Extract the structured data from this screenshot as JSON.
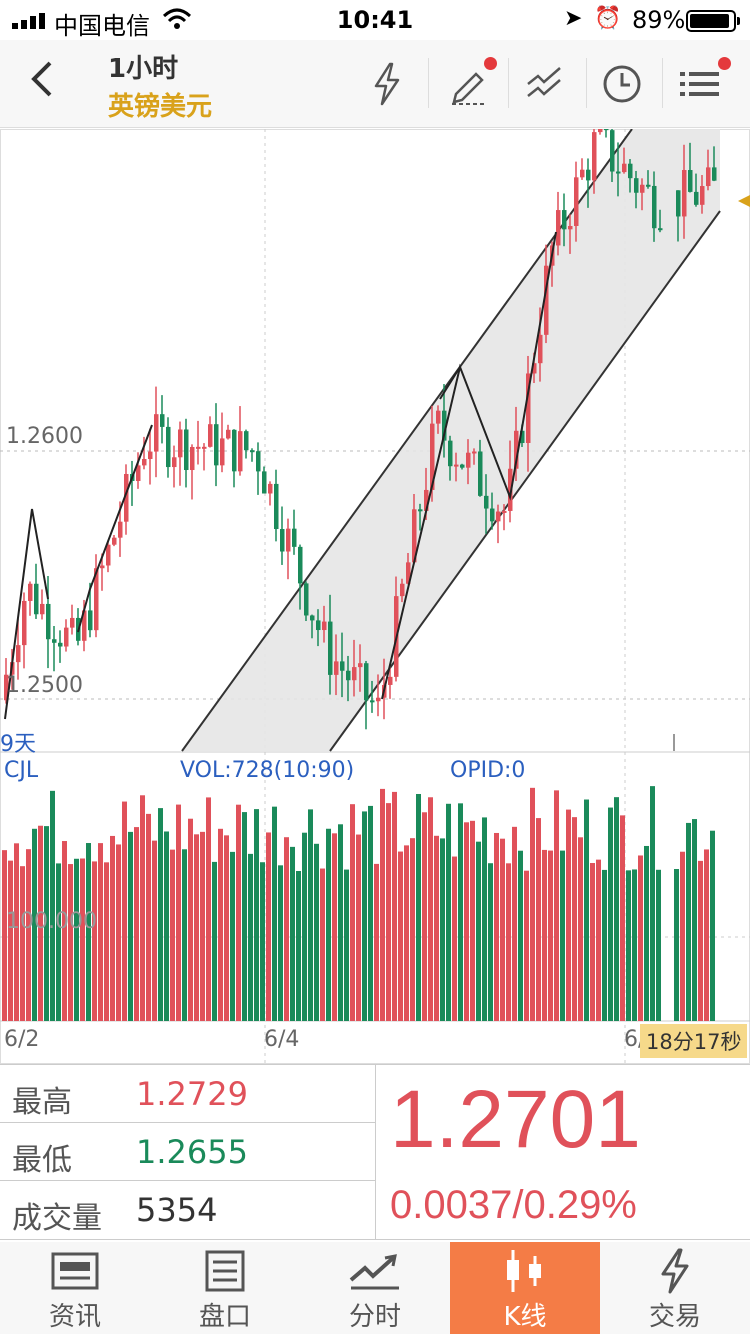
{
  "status_bar": {
    "carrier": "中国电信",
    "time": "10:41",
    "battery_percent": "89%",
    "battery_level": 0.89
  },
  "header": {
    "title": "1小时",
    "subtitle": "英镑美元",
    "icons": [
      "lightning-icon",
      "pen-icon",
      "drawline-icon",
      "clock-icon",
      "menu-icon"
    ]
  },
  "chart": {
    "price_labels": [
      "1.2600",
      "1.2500"
    ],
    "period_label": "9天",
    "volume_panel": {
      "name": "CJL",
      "vol_label": "VOL:728(10:90)",
      "opid_label": "OPID:0",
      "volume_axis_label": "100.000"
    },
    "date_labels": [
      "6/2",
      "6/4",
      "6/"
    ],
    "countdown": "18分17秒"
  },
  "chart_data": {
    "type": "candlestick",
    "symbol": "英镑美元",
    "timeframe": "1小时",
    "y_ticks": [
      1.26,
      1.25
    ],
    "x_labels": [
      "6/2",
      "6/4",
      "6/"
    ],
    "up_color": "#e0515a",
    "down_color": "#1a8a5a",
    "close_last": 1.2701
  },
  "stats": {
    "high_label": "最高",
    "high_value": "1.2729",
    "low_label": "最低",
    "low_value": "1.2655",
    "volume_label": "成交量",
    "volume_value": "5354",
    "price": "1.2701",
    "change": "0.0037/0.29%"
  },
  "tabs": [
    {
      "label": "资讯",
      "icon": "news-icon",
      "active": false
    },
    {
      "label": "盘口",
      "icon": "orderbook-icon",
      "active": false
    },
    {
      "label": "分时",
      "icon": "timeshare-icon",
      "active": false
    },
    {
      "label": "K线",
      "icon": "candlestick-icon",
      "active": true
    },
    {
      "label": "交易",
      "icon": "trade-icon",
      "active": false
    }
  ],
  "colors": {
    "up": "#e0515a",
    "down": "#1a8a5a",
    "accent": "#f47c46",
    "subtitle": "#d9a21b",
    "indicator_text": "#2b5fbf"
  }
}
